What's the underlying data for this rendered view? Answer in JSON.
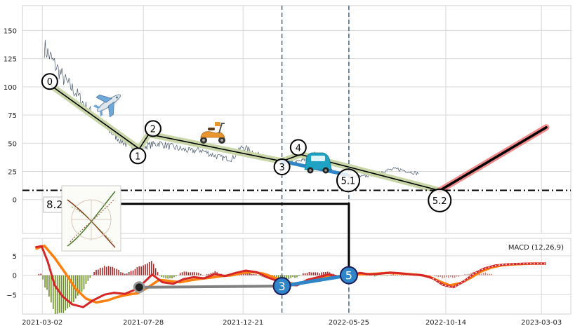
{
  "colors": {
    "grid": "#d9d9d9",
    "panel_bg": "#ffffff",
    "price_line": "#4a5a6e",
    "trend_fill": "#c9d6a8",
    "trend_line": "#000000",
    "down_leg": "#2e86c8",
    "projection_fill": "#f08a8a",
    "vline": "#4a6478",
    "macd_fast": "#ff7f0e",
    "macd_slow": "#d62728",
    "hist_pos": "#a52a2a",
    "hist_neg": "#6b8e23",
    "hist_proj": "#cc8888",
    "connector": "#808080",
    "marker_fill_blue": "#2e86c8"
  },
  "icons": [
    "airplane-icon",
    "scooter-icon",
    "car-icon",
    "chart-thumbnail-icon"
  ],
  "chart_data": [
    {
      "type": "line",
      "panel": "price",
      "xlabel": "",
      "ylabel": "",
      "grid": true,
      "ylim": [
        -30,
        172
      ],
      "xlim": [
        "2021-02-01",
        "2023-04-15"
      ],
      "y_ticks": [
        0,
        25,
        50,
        75,
        100,
        125,
        150
      ],
      "y_tick_labels": [
        "0",
        "25",
        "50",
        "75",
        "100",
        "125",
        "150"
      ],
      "x_ticks": [
        "2021-03-02",
        "2021-07-28",
        "2021-12-21",
        "2022-05-25",
        "2022-10-14",
        "2023-03-03"
      ],
      "x_tick_labels": [
        "2021-03-02",
        "2021-07-28",
        "2021-12-21",
        "2022-05-25",
        "2022-10-14",
        "2023-03-03"
      ],
      "series": [
        {
          "name": "price",
          "x": [
            "2021-03-05",
            "2021-03-20",
            "2021-04-05",
            "2021-04-20",
            "2021-05-05",
            "2021-05-20",
            "2021-06-05",
            "2021-06-20",
            "2021-07-05",
            "2021-07-20",
            "2021-08-05",
            "2021-08-20",
            "2021-09-05",
            "2021-09-20",
            "2021-10-05",
            "2021-10-20",
            "2021-11-05",
            "2021-11-20",
            "2021-12-05",
            "2021-12-20",
            "2022-01-05",
            "2022-01-20",
            "2022-02-05",
            "2022-02-20",
            "2022-03-05",
            "2022-03-20",
            "2022-04-05",
            "2022-04-20",
            "2022-05-05",
            "2022-05-20",
            "2022-06-05",
            "2022-06-20",
            "2022-07-05",
            "2022-07-20",
            "2022-08-05",
            "2022-08-20",
            "2022-09-05"
          ],
          "y": [
            135,
            120,
            105,
            95,
            82,
            72,
            63,
            55,
            48,
            46,
            48,
            50,
            47,
            45,
            43,
            44,
            40,
            37,
            36,
            47,
            42,
            37,
            36,
            35,
            32,
            35,
            40,
            30,
            24,
            22,
            20,
            21,
            24,
            26,
            27,
            25,
            23
          ]
        }
      ],
      "wave_points": [
        {
          "label": "0",
          "x": "2021-03-15",
          "y": 101
        },
        {
          "label": "1",
          "x": "2021-07-22",
          "y": 45
        },
        {
          "label": "2",
          "x": "2021-08-05",
          "y": 58
        },
        {
          "label": "3",
          "x": "2022-02-16",
          "y": 34
        },
        {
          "label": "4",
          "x": "2022-03-15",
          "y": 40
        },
        {
          "label": "5.1",
          "x": "2022-05-22",
          "y": 22
        },
        {
          "label": "5.2",
          "x": "2022-10-05",
          "y": 8
        }
      ],
      "projection": {
        "from": {
          "x": "2022-10-05",
          "y": 8
        },
        "to": {
          "x": "2023-03-10",
          "y": 64
        }
      },
      "horizontal_line": {
        "y": 8.2,
        "label": "8.2"
      },
      "vertical_lines": [
        "2022-02-16",
        "2022-05-25"
      ]
    },
    {
      "type": "line",
      "panel": "macd",
      "title": "MACD (12,26,9)",
      "grid": true,
      "ylim": [
        -10,
        9.5
      ],
      "y_ticks": [
        -5,
        0,
        5
      ],
      "y_tick_labels": [
        "−5",
        "0",
        "5"
      ],
      "series": [
        {
          "name": "macd",
          "x": [
            "2021-02-20",
            "2021-03-01",
            "2021-03-10",
            "2021-03-20",
            "2021-04-01",
            "2021-04-15",
            "2021-05-01",
            "2021-05-15",
            "2021-06-01",
            "2021-06-15",
            "2021-07-01",
            "2021-07-15",
            "2021-07-28",
            "2021-08-10",
            "2021-08-25",
            "2021-09-10",
            "2021-09-25",
            "2021-10-10",
            "2021-10-25",
            "2021-11-10",
            "2021-11-25",
            "2021-12-10",
            "2021-12-25",
            "2022-01-10",
            "2022-01-25",
            "2022-02-10",
            "2022-02-25",
            "2022-03-10",
            "2022-03-25",
            "2022-04-10",
            "2022-04-25",
            "2022-05-10",
            "2022-05-25",
            "2022-06-10",
            "2022-06-25",
            "2022-07-10",
            "2022-07-25",
            "2022-08-10",
            "2022-08-25",
            "2022-09-10",
            "2022-09-25",
            "2022-10-10",
            "2022-10-25",
            "2022-11-10",
            "2022-11-25",
            "2022-12-10",
            "2022-12-25",
            "2023-01-10",
            "2023-01-25",
            "2023-02-10",
            "2023-02-25",
            "2023-03-10"
          ],
          "y": [
            7.2,
            7.5,
            3.5,
            -2.5,
            -5.5,
            -7.5,
            -8.2,
            -6.5,
            -5.0,
            -4.5,
            -4.8,
            -3.8,
            -2.0,
            0.2,
            -1.8,
            -2.2,
            -1.0,
            -0.5,
            -0.8,
            0.3,
            -0.2,
            0.6,
            1.2,
            0.8,
            -0.5,
            -1.5,
            -2.5,
            -2.6,
            -1.2,
            -0.5,
            0.2,
            -0.4,
            -0.3,
            0.6,
            0.2,
            0.4,
            0.7,
            0.5,
            0.2,
            0.0,
            -0.8,
            -2.5,
            -3.1,
            -1.5,
            0.5,
            1.8,
            2.5,
            2.8,
            2.9,
            3.0,
            3.0,
            3.0
          ]
        },
        {
          "name": "signal",
          "x": [
            "2021-02-20",
            "2021-03-05",
            "2021-03-20",
            "2021-04-05",
            "2021-04-20",
            "2021-05-05",
            "2021-05-20",
            "2021-06-05",
            "2021-06-20",
            "2021-07-05",
            "2021-07-20",
            "2021-08-05",
            "2021-08-20",
            "2021-09-05",
            "2021-09-20",
            "2021-10-05",
            "2021-10-20",
            "2021-11-05",
            "2021-11-20",
            "2021-12-05",
            "2021-12-20",
            "2022-01-05",
            "2022-01-20",
            "2022-02-05",
            "2022-02-20",
            "2022-03-05",
            "2022-03-20",
            "2022-04-05",
            "2022-04-20",
            "2022-05-05",
            "2022-05-20",
            "2022-06-05",
            "2022-06-20",
            "2022-07-05",
            "2022-07-20",
            "2022-08-05",
            "2022-08-20",
            "2022-09-05",
            "2022-09-20",
            "2022-10-05",
            "2022-10-20",
            "2022-11-05",
            "2022-11-20",
            "2022-12-05",
            "2022-12-20",
            "2023-01-05",
            "2023-01-20",
            "2023-02-05",
            "2023-02-20",
            "2023-03-10"
          ],
          "y": [
            6.8,
            7.6,
            4.5,
            0.5,
            -3.5,
            -6.0,
            -7.0,
            -6.5,
            -5.6,
            -5.0,
            -4.6,
            -3.0,
            -1.2,
            -1.5,
            -1.8,
            -1.3,
            -0.9,
            -0.6,
            -0.2,
            0.0,
            0.6,
            0.8,
            0.4,
            -0.6,
            -1.6,
            -2.2,
            -2.0,
            -1.2,
            -0.5,
            -0.3,
            -0.3,
            0.2,
            0.3,
            0.4,
            0.6,
            0.5,
            0.3,
            0.1,
            -0.4,
            -1.6,
            -2.6,
            -2.0,
            -0.6,
            1.0,
            2.0,
            2.6,
            2.8,
            2.9,
            3.0,
            3.0
          ]
        }
      ],
      "wave_markers": [
        {
          "label": "",
          "x": "2021-07-22",
          "y": -3.1
        },
        {
          "label": "3",
          "x": "2022-02-16",
          "y": -2.8
        },
        {
          "label": "5",
          "x": "2022-05-25",
          "y": 0
        }
      ]
    }
  ],
  "labels": {
    "hline_label": "8.2",
    "macd_title": "MACD (12,26,9)"
  }
}
